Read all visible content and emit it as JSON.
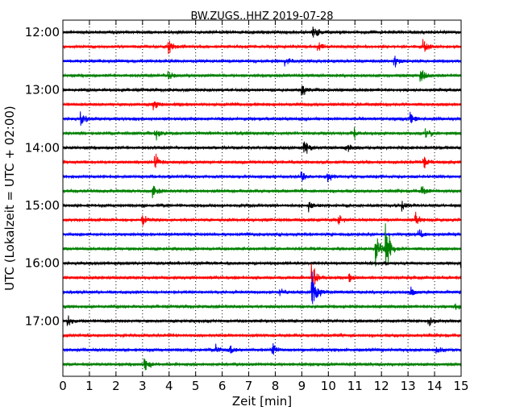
{
  "chart_data": {
    "type": "line",
    "title": "BW.ZUGS..HHZ 2019-07-28",
    "xlabel": "Zeit  [min]",
    "ylabel": "UTC (Lokalzeit = UTC + 02:00)",
    "xlim": [
      0,
      15
    ],
    "x_ticks": [
      "0",
      "1",
      "2",
      "3",
      "4",
      "5",
      "6",
      "7",
      "8",
      "9",
      "10",
      "11",
      "12",
      "13",
      "14",
      "15"
    ],
    "y_ticks": [
      {
        "label": "12:00",
        "row": 0
      },
      {
        "label": "13:00",
        "row": 4
      },
      {
        "label": "14:00",
        "row": 8
      },
      {
        "label": "15:00",
        "row": 12
      },
      {
        "label": "16:00",
        "row": 16
      },
      {
        "label": "17:00",
        "row": 20
      }
    ],
    "grid": "vertical dotted",
    "row_minutes": 15,
    "colors": [
      "#000000",
      "#ff0000",
      "#0000ff",
      "#008000"
    ],
    "traces": [
      {
        "start": "12:00",
        "events": [
          {
            "t": 9.4,
            "amp": 0.5
          }
        ]
      },
      {
        "start": "12:15",
        "events": [
          {
            "t": 4.0,
            "amp": 0.3
          },
          {
            "t": 9.6,
            "amp": 0.3
          },
          {
            "t": 13.6,
            "amp": 0.3
          }
        ]
      },
      {
        "start": "12:30",
        "events": [
          {
            "t": 8.4,
            "amp": 0.25
          },
          {
            "t": 12.5,
            "amp": 0.25
          }
        ]
      },
      {
        "start": "12:45",
        "events": [
          {
            "t": 4.0,
            "amp": 0.3
          },
          {
            "t": 13.5,
            "amp": 0.35
          }
        ]
      },
      {
        "start": "13:00",
        "events": [
          {
            "t": 9.0,
            "amp": 0.4
          }
        ]
      },
      {
        "start": "13:15",
        "events": [
          {
            "t": 3.4,
            "amp": 0.3
          }
        ]
      },
      {
        "start": "13:30",
        "events": [
          {
            "t": 0.7,
            "amp": 0.3
          },
          {
            "t": 13.1,
            "amp": 0.3
          }
        ]
      },
      {
        "start": "13:45",
        "events": [
          {
            "t": 3.5,
            "amp": 0.3
          },
          {
            "t": 11.0,
            "amp": 0.3
          },
          {
            "t": 13.7,
            "amp": 0.3
          }
        ]
      },
      {
        "start": "14:00",
        "events": [
          {
            "t": 9.1,
            "amp": 0.35
          },
          {
            "t": 10.7,
            "amp": 0.2
          }
        ]
      },
      {
        "start": "14:15",
        "events": [
          {
            "t": 3.5,
            "amp": 0.3
          },
          {
            "t": 13.6,
            "amp": 0.4
          }
        ]
      },
      {
        "start": "14:30",
        "events": [
          {
            "t": 9.0,
            "amp": 0.2
          },
          {
            "t": 10.0,
            "amp": 0.2
          }
        ]
      },
      {
        "start": "14:45",
        "events": [
          {
            "t": 3.4,
            "amp": 0.35
          },
          {
            "t": 13.5,
            "amp": 0.3
          }
        ]
      },
      {
        "start": "15:00",
        "events": [
          {
            "t": 9.3,
            "amp": 0.3
          },
          {
            "t": 12.8,
            "amp": 0.2
          }
        ]
      },
      {
        "start": "15:15",
        "events": [
          {
            "t": 3.0,
            "amp": 0.3
          },
          {
            "t": 10.4,
            "amp": 0.2
          },
          {
            "t": 13.3,
            "amp": 0.3
          }
        ]
      },
      {
        "start": "15:30",
        "events": [
          {
            "t": 13.4,
            "amp": 0.35
          }
        ]
      },
      {
        "start": "15:45",
        "events": [
          {
            "t": 11.8,
            "amp": 0.9
          },
          {
            "t": 12.2,
            "amp": 1.0
          }
        ]
      },
      {
        "start": "16:00",
        "events": [
          {
            "t": 15.0,
            "amp": 0.2
          }
        ]
      },
      {
        "start": "16:15",
        "events": [
          {
            "t": 9.4,
            "amp": 0.7
          },
          {
            "t": 10.8,
            "amp": 0.2
          }
        ]
      },
      {
        "start": "16:30",
        "events": [
          {
            "t": 8.2,
            "amp": 0.2
          },
          {
            "t": 9.4,
            "amp": 1.0
          },
          {
            "t": 13.1,
            "amp": 0.2
          }
        ]
      },
      {
        "start": "16:45",
        "events": [
          {
            "t": 14.8,
            "amp": 0.2
          }
        ]
      },
      {
        "start": "17:00",
        "events": [
          {
            "t": 0.2,
            "amp": 0.25
          },
          {
            "t": 13.8,
            "amp": 0.2
          }
        ]
      },
      {
        "start": "17:15",
        "events": []
      },
      {
        "start": "17:30",
        "events": [
          {
            "t": 5.8,
            "amp": 0.25
          },
          {
            "t": 6.3,
            "amp": 0.2
          },
          {
            "t": 7.9,
            "amp": 0.3
          },
          {
            "t": 14.1,
            "amp": 0.2
          }
        ]
      },
      {
        "start": "17:45",
        "events": [
          {
            "t": 3.1,
            "amp": 0.4
          }
        ]
      }
    ]
  }
}
